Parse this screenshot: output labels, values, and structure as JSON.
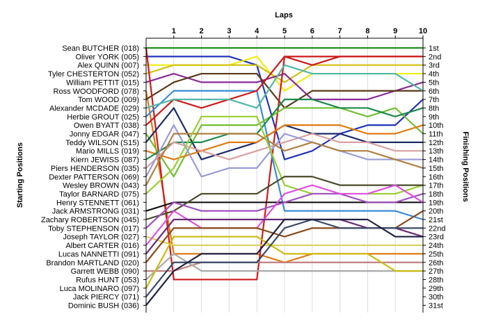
{
  "chart_data": {
    "type": "line",
    "title": "",
    "xlabel": "Laps",
    "ylabel_left": "Starting Positions",
    "ylabel_right": "Finishing Positions",
    "x": [
      0,
      1,
      2,
      3,
      4,
      5,
      6,
      7,
      8,
      9,
      10
    ],
    "x_ticks": [
      "1",
      "2",
      "3",
      "4",
      "5",
      "6",
      "7",
      "8",
      "9",
      "10"
    ],
    "ylim": [
      1,
      31
    ],
    "grid": true,
    "finishing_labels": [
      "1st",
      "2nd",
      "3rd",
      "4th",
      "5th",
      "6th",
      "7th",
      "8th",
      "9th",
      "10th",
      "11th",
      "12th",
      "13th",
      "14th",
      "15th",
      "16th",
      "17th",
      "18th",
      "19th",
      "20th",
      "21st",
      "22nd",
      "23rd",
      "24th",
      "25th",
      "26th",
      "27th",
      "28th",
      "29th",
      "30th",
      "31st"
    ],
    "series": [
      {
        "name": "Sean BUTCHER (018)",
        "color": "#1f8f1f",
        "values": [
          1,
          1,
          1,
          1,
          1,
          1,
          1,
          1,
          1,
          1,
          1
        ]
      },
      {
        "name": "Oliver YORK (005)",
        "color": "#2233bb",
        "values": [
          2,
          2,
          2,
          2,
          3,
          14,
          13,
          11,
          10,
          10,
          7
        ]
      },
      {
        "name": "Alex QUINN (007)",
        "color": "#eeee10",
        "values": [
          3,
          3,
          3,
          3,
          2,
          6,
          4,
          4,
          4,
          4,
          4
        ]
      },
      {
        "name": "Tyler CHESTERTON (052)",
        "color": "#d4c010",
        "values": [
          4,
          3,
          3,
          3,
          3,
          5,
          3,
          3,
          3,
          3,
          3
        ]
      },
      {
        "name": "William PETTIT (015)",
        "color": "#8a2a9a",
        "values": [
          5,
          4,
          5,
          5,
          5,
          4,
          7,
          7,
          7,
          6,
          5
        ]
      },
      {
        "name": "Ross WOODFORD (078)",
        "color": "#e07a10",
        "values": [
          6,
          25,
          25,
          25,
          25,
          26,
          25,
          25,
          25,
          25,
          25
        ]
      },
      {
        "name": "Tom WOOD (009)",
        "color": "#5a3a1a",
        "values": [
          7,
          5,
          4,
          4,
          4,
          8,
          6,
          6,
          6,
          6,
          6
        ]
      },
      {
        "name": "Alexander MCDADE (029)",
        "color": "#cc1a1a",
        "values": [
          1,
          28,
          28,
          28,
          28,
          2,
          3,
          2,
          2,
          2,
          2
        ]
      },
      {
        "name": "Herbie GROUT (025)",
        "color": "#3a8ad8",
        "values": [
          9,
          6,
          6,
          6,
          6,
          20,
          20,
          20,
          20,
          20,
          21
        ]
      },
      {
        "name": "Owen BYATT (038)",
        "color": "#cc1a1a",
        "values": [
          10,
          7,
          8,
          7,
          6,
          2,
          2,
          2,
          2,
          2,
          2
        ]
      },
      {
        "name": "Jonny EDGAR (047)",
        "color": "#70c030",
        "values": [
          11,
          16,
          10,
          10,
          10,
          8,
          8,
          8,
          9,
          8,
          11
        ]
      },
      {
        "name": "Teddy WILSON (S15)",
        "color": "#1a2a6a",
        "values": [
          12,
          8,
          14,
          13,
          12,
          10,
          11,
          11,
          12,
          12,
          12
        ]
      },
      {
        "name": "Mario MILLS (019)",
        "color": "#e07a10",
        "values": [
          13,
          14,
          13,
          12,
          12,
          10,
          10,
          10,
          11,
          11,
          10
        ]
      },
      {
        "name": "Kiern JEWISS (087)",
        "color": "#1a8a4a",
        "values": [
          14,
          12,
          12,
          11,
          11,
          7,
          7,
          8,
          8,
          9,
          8
        ]
      },
      {
        "name": "Piers HENDERSON (035)",
        "color": "#d8a0a0",
        "values": [
          15,
          12,
          13,
          14,
          13,
          12,
          11,
          12,
          12,
          13,
          13
        ]
      },
      {
        "name": "Dexter PATTERSON (069)",
        "color": "#9a9ad8",
        "values": [
          16,
          10,
          16,
          15,
          15,
          11,
          12,
          13,
          14,
          14,
          14
        ]
      },
      {
        "name": "Wesley BROWN (043)",
        "color": "#b08040",
        "values": [
          17,
          11,
          11,
          11,
          11,
          13,
          12,
          13,
          13,
          14,
          15
        ]
      },
      {
        "name": "Taylor BARNARD (075)",
        "color": "#98d030",
        "values": [
          18,
          15,
          9,
          9,
          9,
          17,
          18,
          18,
          18,
          18,
          17
        ]
      },
      {
        "name": "Henry STENNETT (061)",
        "color": "#50b8a8",
        "values": [
          8,
          7,
          7,
          7,
          8,
          3,
          4,
          4,
          4,
          4,
          6
        ]
      },
      {
        "name": "Jack ARMSTRONG (031)",
        "color": "#161616",
        "values": [
          20,
          19,
          19,
          19,
          19,
          19,
          19,
          19,
          19,
          19,
          19
        ]
      },
      {
        "name": "Zachary ROBERTSON (045)",
        "color": "#4a4a2a",
        "values": [
          21,
          20,
          18,
          18,
          18,
          16,
          16,
          17,
          17,
          17,
          17
        ]
      },
      {
        "name": "Toby STEPHENSON (017)",
        "color": "#a050c0",
        "values": [
          22,
          19,
          20,
          20,
          20,
          19,
          18,
          18,
          19,
          19,
          18
        ]
      },
      {
        "name": "Joseph TAYLOR (027)",
        "color": "#d8d060",
        "values": [
          23,
          24,
          24,
          24,
          24,
          24,
          24,
          24,
          24,
          24,
          24
        ]
      },
      {
        "name": "Albert CARTER (016)",
        "color": "#e050e0",
        "values": [
          24,
          20,
          22,
          22,
          22,
          18,
          17,
          18,
          18,
          17,
          19
        ]
      },
      {
        "name": "Lucas NANNETTI (091)",
        "color": "#6a2a7a",
        "values": [
          25,
          21,
          21,
          21,
          21,
          21,
          21,
          21,
          22,
          22,
          23
        ]
      },
      {
        "name": "Brandon MARTLAND (020)",
        "color": "#8a4a1a",
        "values": [
          26,
          22,
          22,
          22,
          22,
          23,
          22,
          22,
          22,
          22,
          20
        ]
      },
      {
        "name": "Garrett WEBB (090)",
        "color": "#c08080",
        "values": [
          27,
          27,
          26,
          26,
          26,
          26,
          26,
          26,
          26,
          26,
          26
        ]
      },
      {
        "name": "Rufus HUNT (053)",
        "color": "#aaaaaa",
        "values": [
          28,
          25,
          27,
          27,
          27,
          27,
          27,
          27,
          27,
          27,
          27
        ]
      },
      {
        "name": "Luca MOLINARO (097)",
        "color": "#ccbb10",
        "values": [
          29,
          23,
          23,
          23,
          23,
          25,
          25,
          25,
          25,
          27,
          27
        ]
      },
      {
        "name": "Jack PIERCY (071)",
        "color": "#3a4a6a",
        "values": [
          30,
          26,
          26,
          26,
          26,
          22,
          21,
          22,
          22,
          22,
          22
        ]
      },
      {
        "name": "Dominic BUSH (036)",
        "color": "#222244",
        "values": [
          31,
          27,
          25,
          25,
          25,
          21,
          21,
          21,
          21,
          23,
          23
        ]
      }
    ]
  }
}
